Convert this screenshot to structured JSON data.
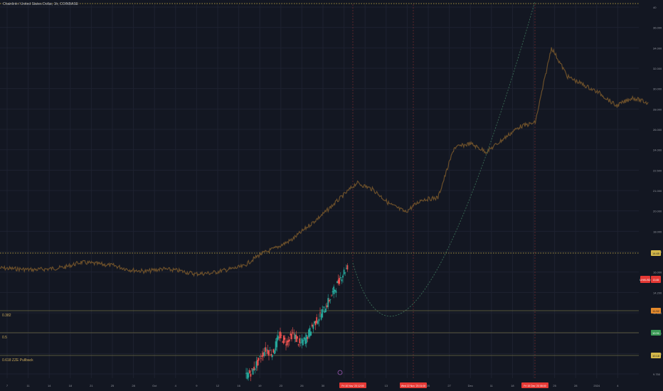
{
  "header": {
    "title": "Chainlink / United States Dollar, 1h, COINBASE"
  },
  "colors": {
    "background": "#131722",
    "grid": "#1e2230",
    "price_candles": "#6b4f2a",
    "candle_up": "#26a69a",
    "candle_down": "#ef5350",
    "arc": "#3a6b55",
    "level_line": "#6e6a44",
    "dotted_level": "#d4b84a",
    "marker_red": "#e53935",
    "text_axis": "#9598a1"
  },
  "chart_data": {
    "type": "candlestick",
    "title": "Chainlink / United States Dollar, 1h, COINBASE",
    "y_axis": {
      "side": "right",
      "range": [
        9.4,
        40.5
      ],
      "ticks": [
        "40",
        "36.000",
        "34.000",
        "32.000",
        "30.000",
        "28.000",
        "26.000",
        "24.000",
        "22.500",
        "21.000",
        "20.000",
        "18.000",
        "17.000",
        "16.000",
        "14.200",
        "12.600",
        "11.400",
        "10.000",
        "9.750"
      ]
    },
    "x_axis": {
      "ticks": [
        "7",
        "11",
        "14",
        "18",
        "21",
        "25",
        "28",
        "Oct",
        "4",
        "9",
        "12",
        "16",
        "19",
        "23",
        "26",
        "30",
        "Nov",
        "6",
        "13",
        "16",
        "20",
        "27",
        "Dec",
        "11",
        "18",
        "21",
        "25",
        "28",
        "2024",
        "4"
      ]
    },
    "series": [
      {
        "kind": "price-history",
        "close": [
          7.6,
          7.5,
          7.4,
          7.5,
          7.7,
          8.3,
          8.1,
          7.9,
          7.4,
          7.2,
          7.5,
          7.3,
          6.9,
          7.0,
          7.4,
          7.8,
          9.2,
          10.0,
          11.0,
          12.6,
          14.2,
          16.0,
          17.8,
          17.0,
          15.3,
          14.3,
          15.8,
          16.0,
          22.0,
          22.5,
          21.5,
          23.0,
          24.5,
          25.0,
          34.0,
          30.5,
          29.5,
          28.5,
          27.0,
          28.0,
          27.3
        ]
      },
      {
        "kind": "bottom-candles",
        "candles": [
          {
            "o": 9.3,
            "h": 9.6,
            "l": 9.25,
            "c": 9.5
          },
          {
            "o": 9.5,
            "h": 10.1,
            "l": 9.4,
            "c": 10.0
          },
          {
            "o": 10.0,
            "h": 10.6,
            "l": 9.9,
            "c": 10.5
          },
          {
            "o": 10.5,
            "h": 11.0,
            "l": 10.2,
            "c": 10.3
          },
          {
            "o": 10.3,
            "h": 11.3,
            "l": 10.2,
            "c": 11.1
          },
          {
            "o": 11.1,
            "h": 11.6,
            "l": 10.7,
            "c": 10.8
          },
          {
            "o": 10.8,
            "h": 11.4,
            "l": 10.5,
            "c": 11.2
          },
          {
            "o": 11.2,
            "h": 11.5,
            "l": 10.6,
            "c": 10.7
          },
          {
            "o": 10.7,
            "h": 11.2,
            "l": 10.4,
            "c": 11.0
          },
          {
            "o": 11.0,
            "h": 11.8,
            "l": 10.9,
            "c": 11.6
          },
          {
            "o": 11.6,
            "h": 12.2,
            "l": 11.4,
            "c": 12.0
          },
          {
            "o": 12.0,
            "h": 12.7,
            "l": 11.9,
            "c": 12.5
          },
          {
            "o": 12.5,
            "h": 13.3,
            "l": 12.4,
            "c": 13.1
          },
          {
            "o": 13.1,
            "h": 13.9,
            "l": 13.0,
            "c": 13.7
          },
          {
            "o": 13.7,
            "h": 14.3,
            "l": 13.5,
            "c": 14.2
          }
        ]
      },
      {
        "kind": "arc-projection",
        "points": [
          [
            0,
            14.4
          ],
          [
            0.5,
            9.9
          ],
          [
            1,
            40.5
          ]
        ]
      }
    ],
    "levels": [
      {
        "label": "0.382",
        "value": 11.52,
        "axis_label": "11.52"
      },
      {
        "label": "0.5",
        "value": 10.91,
        "axis_label": "10.91"
      },
      {
        "label": "0.618 ZZE Pullback",
        "value": 10.18,
        "axis_label": "10.18"
      },
      {
        "label": "",
        "value": 14.65,
        "axis_label": "14.65"
      }
    ],
    "price_labels": [
      {
        "text": "LINKUSD",
        "value": "14.2"
      },
      {
        "text": "13.65",
        "value": "13.65"
      }
    ],
    "date_markers": [
      {
        "text": "Fri 10 Nov '23   12:00"
      },
      {
        "text": "Wed 22 Nov '23   01:00"
      },
      {
        "text": "Fri 15 Dec '23   08:00"
      }
    ],
    "grid": true,
    "legend": "none"
  }
}
